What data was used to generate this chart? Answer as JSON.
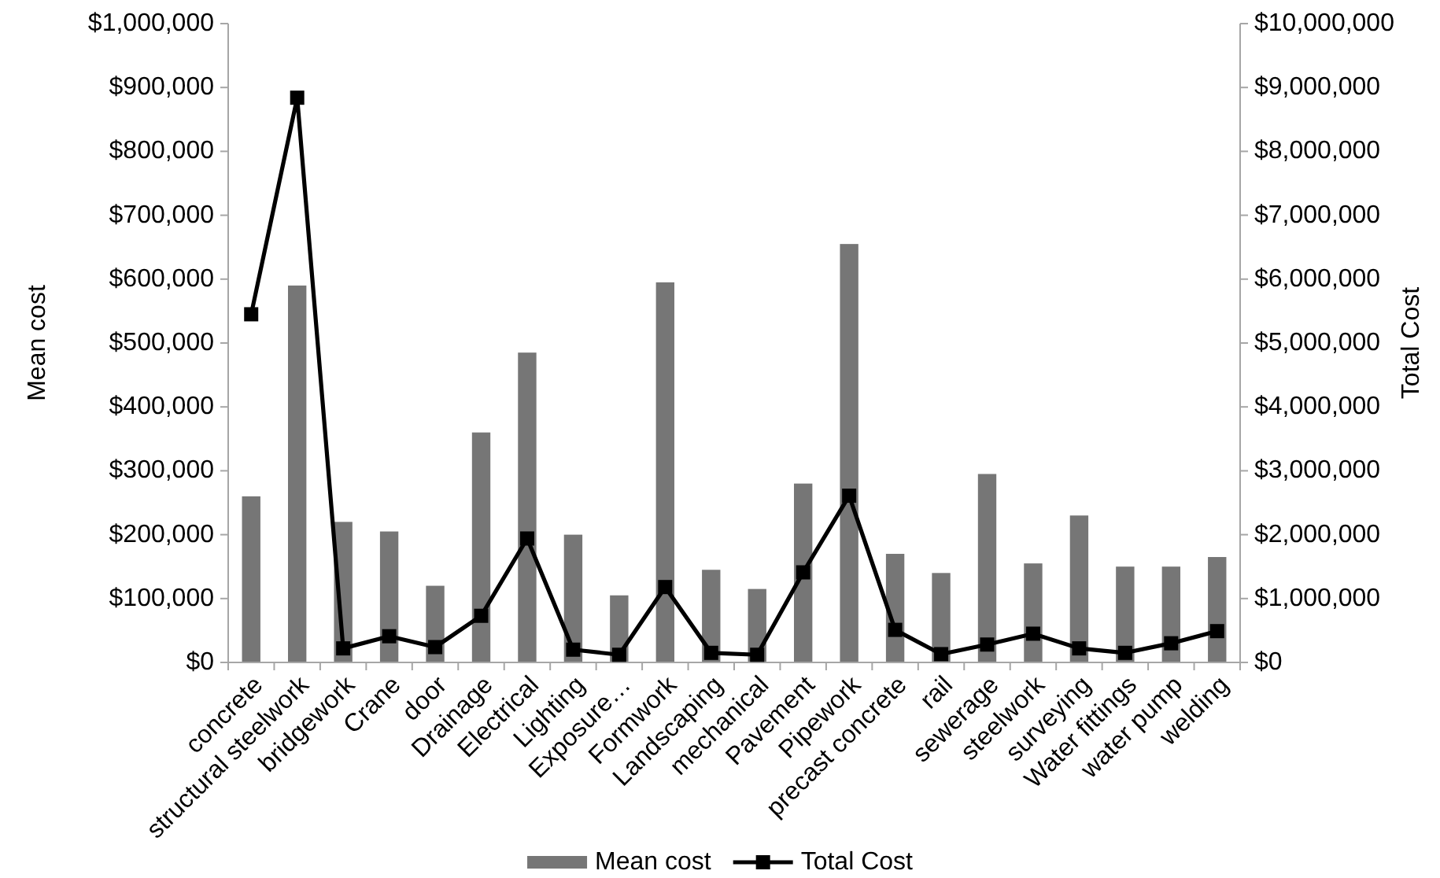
{
  "chart_data": {
    "type": "bar",
    "categories": [
      "concrete",
      "structural steelwork",
      "bridgework",
      "Crane",
      "door",
      "Drainage",
      "Electrical",
      "Lighting",
      "Exposure…",
      "Formwork",
      "Landscaping",
      "mechanical",
      "Pavement",
      "Pipework",
      "precast concrete",
      "rail",
      "sewerage",
      "steelwork",
      "surveying",
      "Water fittings",
      "water pump",
      "welding"
    ],
    "series": [
      {
        "name": "Mean cost",
        "color": "#767676",
        "values": [
          260000,
          590000,
          220000,
          205000,
          120000,
          360000,
          485000,
          200000,
          105000,
          595000,
          145000,
          115000,
          280000,
          655000,
          170000,
          140000,
          295000,
          155000,
          230000,
          150000,
          150000,
          165000
        ]
      },
      {
        "name": "Total Cost",
        "type": "line",
        "axis": "y2",
        "color": "#000000",
        "marker": "square",
        "line_style": "solid",
        "values": [
          5450000,
          8840000,
          220000,
          410000,
          240000,
          730000,
          1940000,
          200000,
          120000,
          1180000,
          150000,
          120000,
          1410000,
          2610000,
          510000,
          130000,
          280000,
          450000,
          220000,
          150000,
          300000,
          490000
        ]
      }
    ],
    "ylabel": "Mean cost",
    "y2label": "Total Cost",
    "ylim": [
      0,
      1000000
    ],
    "yticks": [
      {
        "value": 0,
        "label": "$0"
      },
      {
        "value": 100000,
        "label": "$100,000"
      },
      {
        "value": 200000,
        "label": "$200,000"
      },
      {
        "value": 300000,
        "label": "$300,000"
      },
      {
        "value": 400000,
        "label": "$400,000"
      },
      {
        "value": 500000,
        "label": "$500,000"
      },
      {
        "value": 600000,
        "label": "$600,000"
      },
      {
        "value": 700000,
        "label": "$700,000"
      },
      {
        "value": 800000,
        "label": "$800,000"
      },
      {
        "value": 900000,
        "label": "$900,000"
      },
      {
        "value": 1000000,
        "label": "$1,000,000"
      }
    ],
    "y2lim": [
      0,
      10000000
    ],
    "y2ticks": [
      {
        "value": 0,
        "label": "$0"
      },
      {
        "value": 1000000,
        "label": "$1,000,000"
      },
      {
        "value": 2000000,
        "label": "$2,000,000"
      },
      {
        "value": 3000000,
        "label": "$3,000,000"
      },
      {
        "value": 4000000,
        "label": "$4,000,000"
      },
      {
        "value": 5000000,
        "label": "$5,000,000"
      },
      {
        "value": 6000000,
        "label": "$6,000,000"
      },
      {
        "value": 7000000,
        "label": "$7,000,000"
      },
      {
        "value": 8000000,
        "label": "$8,000,000"
      },
      {
        "value": 9000000,
        "label": "$9,000,000"
      },
      {
        "value": 10000000,
        "label": "$10,000,000"
      }
    ],
    "legend": "bottom"
  }
}
